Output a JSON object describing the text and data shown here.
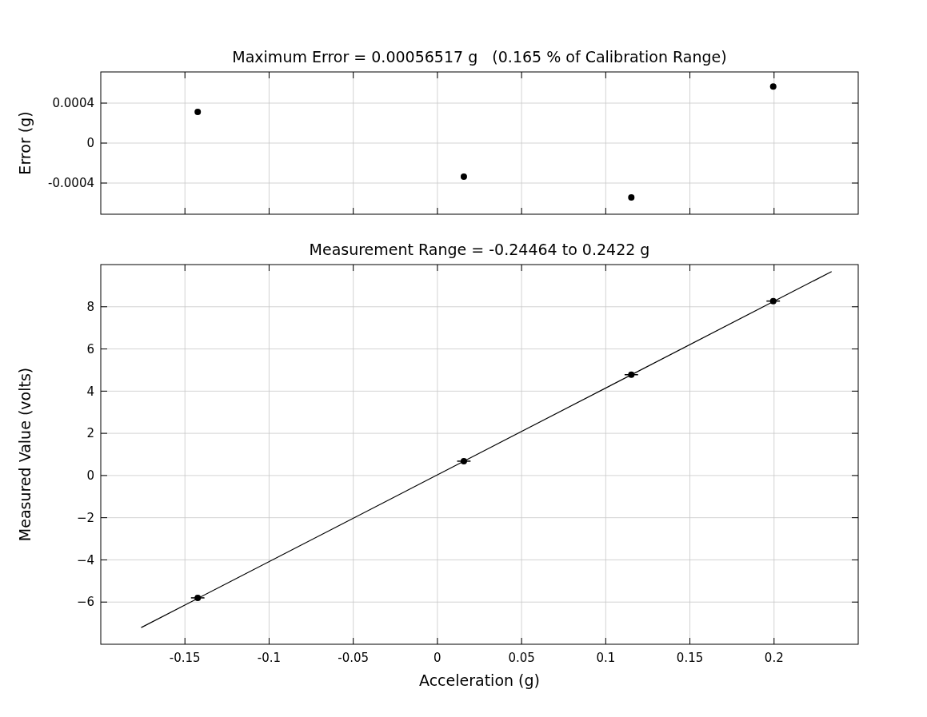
{
  "chart_data": [
    {
      "type": "scatter",
      "title": "Maximum Error = 0.00056517 g   (0.165 % of Calibration Range)",
      "ylabel": "Error (g)",
      "x": [
        -0.1424,
        0.0157,
        0.1152,
        0.1995
      ],
      "values": [
        0.000312,
        -0.000336,
        -0.000544,
        0.00056517
      ],
      "color": "#000000",
      "marker": "circle",
      "xlim": [
        -0.2,
        0.25
      ],
      "xticks": [
        {
          "value": -0.15,
          "label": null
        },
        {
          "value": -0.1,
          "label": null
        },
        {
          "value": -0.05,
          "label": null
        },
        {
          "value": 0,
          "label": null
        },
        {
          "value": 0.05,
          "label": null
        },
        {
          "value": 0.1,
          "label": null
        },
        {
          "value": 0.15,
          "label": null
        },
        {
          "value": 0.2,
          "label": null
        }
      ],
      "ylim": [
        -0.000712,
        0.000712
      ],
      "yticks": [
        -0.0004,
        0,
        0.0004
      ],
      "tick_labels": "y",
      "grid": true
    },
    {
      "type": "scatter",
      "title": "Measurement Range = -0.24464 to 0.2422 g",
      "xlabel": "Acceleration (g)",
      "ylabel": "Measured Value (volts)",
      "series": [
        {
          "type": "scatter",
          "color": "#000000",
          "marker": "circle",
          "x": [
            -0.1424,
            0.0157,
            0.1152,
            0.1995
          ],
          "values": [
            -5.8,
            0.68,
            4.78,
            8.27
          ],
          "xerrors": [
            0.004,
            0.004,
            0.004,
            0.004
          ]
        },
        {
          "type": "line",
          "color": "#000000",
          "line_style": "solid",
          "x": [
            -0.176,
            0.2342
          ],
          "values": [
            -7.21,
            9.67
          ]
        }
      ],
      "xlim": [
        -0.2,
        0.25
      ],
      "xticks": [
        -0.15,
        -0.1,
        -0.05,
        0,
        0.05,
        0.1,
        0.15,
        0.2
      ],
      "ylim": [
        -8,
        10
      ],
      "yticks": [
        {
          "value": -6,
          "label": "−6"
        },
        {
          "value": -4,
          "label": "−4"
        },
        {
          "value": -2,
          "label": "−2"
        },
        0,
        2,
        4,
        6,
        8
      ],
      "grid": true
    }
  ]
}
